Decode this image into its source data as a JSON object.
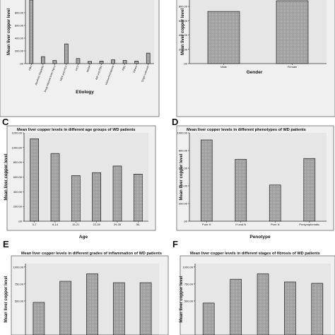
{
  "panels": [
    {
      "letter": "",
      "chart_data": {
        "type": "bar",
        "title": "",
        "xlabel": "Etiology",
        "ylabel": "Mean liver copper level",
        "categories": [
          "HBV",
          "Alcoholic Hepatitis",
          "Drug-induced Liver Injury",
          "HBV and HCV",
          "HCV",
          "NASH",
          "AIH and PBC",
          "Hemochromatosis",
          "PBC",
          "Others",
          "Origin unknown"
        ],
        "values": [
          1000,
          110,
          50,
          310,
          80,
          35,
          40,
          60,
          50,
          40,
          165
        ],
        "ylim": [
          0,
          1000
        ],
        "yticks": [
          0,
          200,
          400,
          600,
          800
        ],
        "ytick_labels": [
          ".00",
          "200.00",
          "400.00",
          "600.00",
          "800.00"
        ],
        "grid": false
      }
    },
    {
      "letter": "",
      "chart_data": {
        "type": "bar",
        "title": "",
        "xlabel": "Gender",
        "ylabel": "Mean liver copper level",
        "categories": [
          "Male",
          "Female"
        ],
        "values": [
          730,
          880
        ],
        "ylim": [
          0,
          890
        ],
        "yticks": [
          0,
          200,
          400,
          600,
          800
        ],
        "ytick_labels": [
          ".00",
          "200.00",
          "400.00",
          "600.00",
          "800.00"
        ],
        "grid": false
      }
    },
    {
      "letter": "C",
      "chart_data": {
        "type": "bar",
        "title": "Mean liver copper levels in different age groups of WD patients",
        "xlabel": "Age",
        "ylabel": "Mean liver copper level",
        "categories": [
          "0-7",
          "8-14",
          "15-21",
          "22-28",
          "29-35",
          "36-"
        ],
        "values": [
          1120,
          920,
          620,
          660,
          750,
          640
        ],
        "ylim": [
          0,
          1200
        ],
        "yticks": [
          0,
          200,
          400,
          600,
          800,
          1000,
          1200
        ],
        "ytick_labels": [
          ".00",
          "200.00",
          "400.00",
          "600.00",
          "800.00",
          "1000.00",
          "1200.00"
        ],
        "grid": false
      }
    },
    {
      "letter": "D",
      "chart_data": {
        "type": "bar",
        "title": "Mean liver copper levels in different phenotypes of WD patients",
        "xlabel": "Penotype",
        "ylabel": "Mean liver copper level",
        "categories": [
          "Pure H",
          "H and N",
          "Pure N",
          "Presymptomatic"
        ],
        "values": [
          920,
          700,
          410,
          710
        ],
        "ylim": [
          0,
          1000
        ],
        "yticks": [
          0,
          200,
          400,
          600,
          800,
          1000
        ],
        "ytick_labels": [
          ".00",
          "200.00",
          "400.00",
          "600.00",
          "800.00",
          "1000.00"
        ],
        "grid": false
      }
    },
    {
      "letter": "E",
      "chart_data": {
        "type": "bar",
        "title": "Mean liver copper levels in different grades of inflammation of WD patients",
        "xlabel": "",
        "ylabel": "Mean liver copper level",
        "categories": [
          "",
          "",
          "",
          "",
          ""
        ],
        "values": [
          480,
          790,
          900,
          770,
          770
        ],
        "ylim": [
          0,
          1050
        ],
        "yticks": [
          500,
          750,
          1000
        ],
        "ytick_labels": [
          "500.00",
          "750.00",
          "1000.00"
        ],
        "grid": false
      }
    },
    {
      "letter": "F",
      "chart_data": {
        "type": "bar",
        "title": "Mean liver copper levels in different stages of fibrosis of WD patients",
        "xlabel": "",
        "ylabel": "Mean liver copper level",
        "categories": [
          "",
          "",
          "",
          "",
          ""
        ],
        "values": [
          470,
          820,
          900,
          780,
          760
        ],
        "ylim": [
          0,
          1050
        ],
        "yticks": [
          500,
          750,
          1000
        ],
        "ytick_labels": [
          "500.00",
          "750.00",
          "1000.00"
        ],
        "grid": false
      }
    }
  ]
}
